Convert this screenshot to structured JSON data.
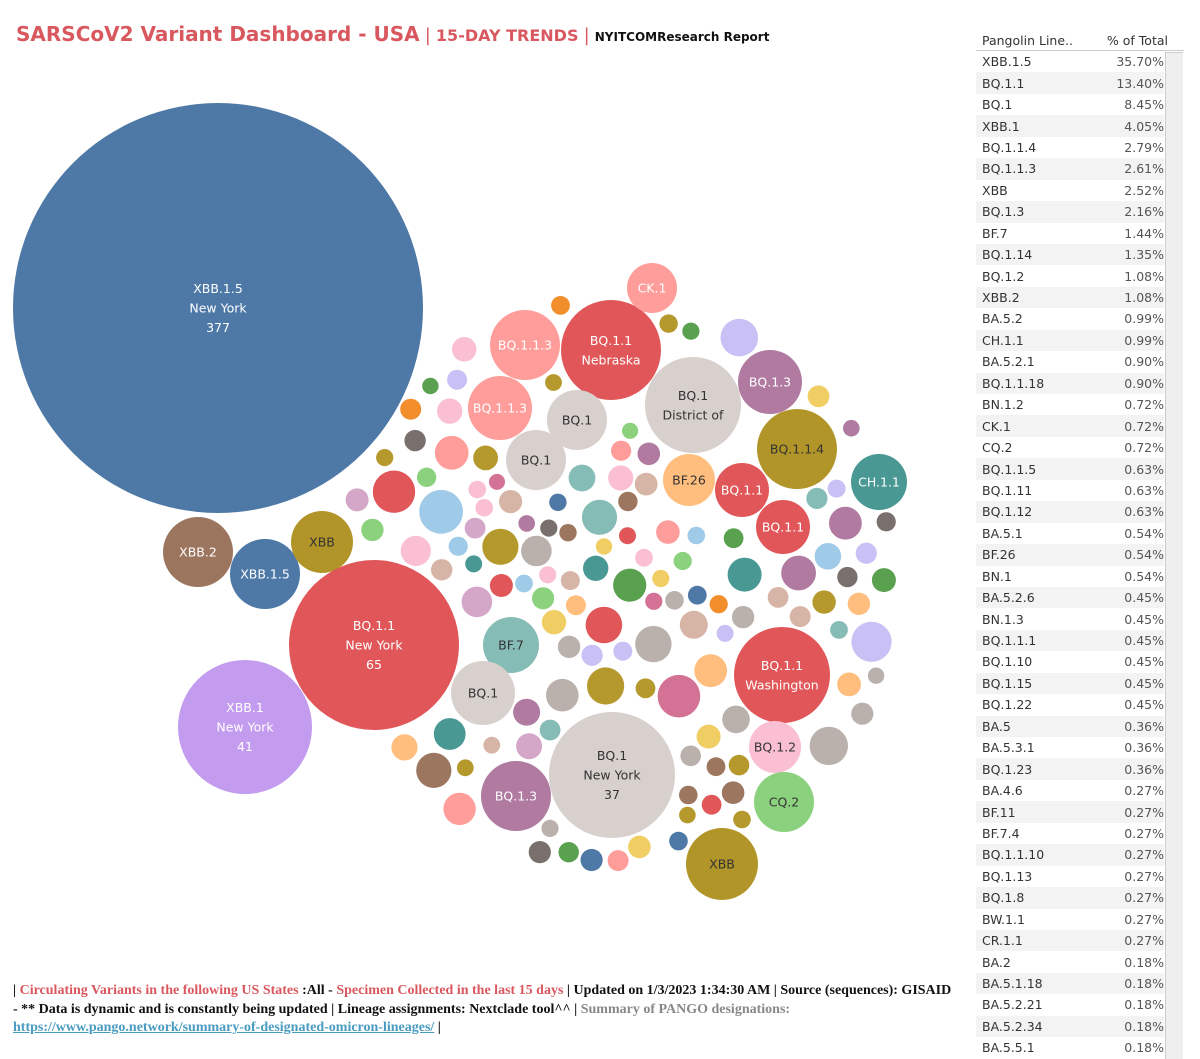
{
  "header": {
    "title": "SARSCoV2 Variant Dashboard - USA",
    "sep": "|",
    "subtitle": "15-DAY TRENDS",
    "source": "NYITCOMResearch Report"
  },
  "colors": {
    "accent": "#d9585f",
    "link": "#4a9bc0"
  },
  "chart_data": {
    "type": "bubble",
    "title": "SARSCoV2 Variant Dashboard - USA",
    "bubbles": [
      {
        "label": "XBB.1.5",
        "location": "New York",
        "count": "377",
        "color": "#4e79a7"
      },
      {
        "label": "XBB.2",
        "location": "",
        "count": "",
        "color": "#9c755f"
      },
      {
        "label": "XBB.1.5",
        "location": "",
        "count": "",
        "color": "#4e79a7"
      },
      {
        "label": "XBB",
        "location": "",
        "count": "",
        "color": "#b29529"
      },
      {
        "label": "BQ.1.1",
        "location": "New York",
        "count": "65",
        "color": "#e15759"
      },
      {
        "label": "XBB.1",
        "location": "New York",
        "count": "41",
        "color": "#c39bef"
      },
      {
        "label": "BQ.1.1.3",
        "location": "",
        "count": "",
        "color": "#ff9d9a"
      },
      {
        "label": "BQ.1.1",
        "location": "Nebraska",
        "count": "",
        "color": "#e15759"
      },
      {
        "label": "CK.1",
        "location": "",
        "count": "",
        "color": "#ff9d9a"
      },
      {
        "label": "BQ.1",
        "location": "District of",
        "count": "",
        "color": "#d7d0cc"
      },
      {
        "label": "BQ.1.3",
        "location": "",
        "count": "",
        "color": "#b07aa1"
      },
      {
        "label": "BQ.1.1.3",
        "location": "",
        "count": "",
        "color": "#ff9d9a"
      },
      {
        "label": "BQ.1",
        "location": "",
        "count": "",
        "color": "#d7d0cc"
      },
      {
        "label": "BQ.1",
        "location": "",
        "count": "",
        "color": "#d7d0cc"
      },
      {
        "label": "BQ.1.1.4",
        "location": "",
        "count": "",
        "color": "#b29529"
      },
      {
        "label": "CH.1.1",
        "location": "",
        "count": "",
        "color": "#499894"
      },
      {
        "label": "BF.26",
        "location": "",
        "count": "",
        "color": "#ffbe7d"
      },
      {
        "label": "BQ.1.1",
        "location": "",
        "count": "",
        "color": "#e15759"
      },
      {
        "label": "BQ.1.1",
        "location": "",
        "count": "",
        "color": "#e15759"
      },
      {
        "label": "BF.7",
        "location": "",
        "count": "",
        "color": "#86bcb6"
      },
      {
        "label": "BQ.1",
        "location": "",
        "count": "",
        "color": "#d7d0cc"
      },
      {
        "label": "BQ.1.1",
        "location": "Washington",
        "count": "",
        "color": "#e15759"
      },
      {
        "label": "BQ.1.2",
        "location": "",
        "count": "",
        "color": "#fabfd2"
      },
      {
        "label": "BQ.1",
        "location": "New York",
        "count": "37",
        "color": "#d7d0cc"
      },
      {
        "label": "BQ.1.3",
        "location": "",
        "count": "",
        "color": "#b07aa1"
      },
      {
        "label": "CQ.2",
        "location": "",
        "count": "",
        "color": "#8cd17d"
      },
      {
        "label": "XBB",
        "location": "",
        "count": "",
        "color": "#b29529"
      }
    ]
  },
  "table": {
    "headers": [
      "Pangolin Line..",
      "% of Total"
    ],
    "rows": [
      [
        "XBB.1.5",
        "35.70%"
      ],
      [
        "BQ.1.1",
        "13.40%"
      ],
      [
        "BQ.1",
        "8.45%"
      ],
      [
        "XBB.1",
        "4.05%"
      ],
      [
        "BQ.1.1.4",
        "2.79%"
      ],
      [
        "BQ.1.1.3",
        "2.61%"
      ],
      [
        "XBB",
        "2.52%"
      ],
      [
        "BQ.1.3",
        "2.16%"
      ],
      [
        "BF.7",
        "1.44%"
      ],
      [
        "BQ.1.14",
        "1.35%"
      ],
      [
        "BQ.1.2",
        "1.08%"
      ],
      [
        "XBB.2",
        "1.08%"
      ],
      [
        "BA.5.2",
        "0.99%"
      ],
      [
        "CH.1.1",
        "0.99%"
      ],
      [
        "BA.5.2.1",
        "0.90%"
      ],
      [
        "BQ.1.1.18",
        "0.90%"
      ],
      [
        "BN.1.2",
        "0.72%"
      ],
      [
        "CK.1",
        "0.72%"
      ],
      [
        "CQ.2",
        "0.72%"
      ],
      [
        "BQ.1.1.5",
        "0.63%"
      ],
      [
        "BQ.1.11",
        "0.63%"
      ],
      [
        "BQ.1.12",
        "0.63%"
      ],
      [
        "BA.5.1",
        "0.54%"
      ],
      [
        "BF.26",
        "0.54%"
      ],
      [
        "BN.1",
        "0.54%"
      ],
      [
        "BA.5.2.6",
        "0.45%"
      ],
      [
        "BN.1.3",
        "0.45%"
      ],
      [
        "BQ.1.1.1",
        "0.45%"
      ],
      [
        "BQ.1.10",
        "0.45%"
      ],
      [
        "BQ.1.15",
        "0.45%"
      ],
      [
        "BQ.1.22",
        "0.45%"
      ],
      [
        "BA.5",
        "0.36%"
      ],
      [
        "BA.5.3.1",
        "0.36%"
      ],
      [
        "BQ.1.23",
        "0.36%"
      ],
      [
        "BA.4.6",
        "0.27%"
      ],
      [
        "BF.11",
        "0.27%"
      ],
      [
        "BF.7.4",
        "0.27%"
      ],
      [
        "BQ.1.1.10",
        "0.27%"
      ],
      [
        "BQ.1.13",
        "0.27%"
      ],
      [
        "BQ.1.8",
        "0.27%"
      ],
      [
        "BW.1.1",
        "0.27%"
      ],
      [
        "CR.1.1",
        "0.27%"
      ],
      [
        "BA.2",
        "0.18%"
      ],
      [
        "BA.5.1.18",
        "0.18%"
      ],
      [
        "BA.5.2.21",
        "0.18%"
      ],
      [
        "BA.5.2.34",
        "0.18%"
      ],
      [
        "BA.5.5.1",
        "0.18%"
      ]
    ]
  },
  "footer": {
    "p1": "| ",
    "p2": "Circulating Variants in the following US States",
    "p3": " :All - ",
    "p4": "Specimen Collected in the last 15 days",
    "p5": " | Updated on 1/3/2023 1:34:30 AM | Source (sequences): GISAID - ** Data is dynamic and is constantly being updated | Lineage assignments: Nextclade tool^^ | ",
    "p6": "Summary of PANGO designations:",
    "link": "https://www.pango.network/summary-of-designated-omicron-lineages/",
    "p7": " |"
  }
}
